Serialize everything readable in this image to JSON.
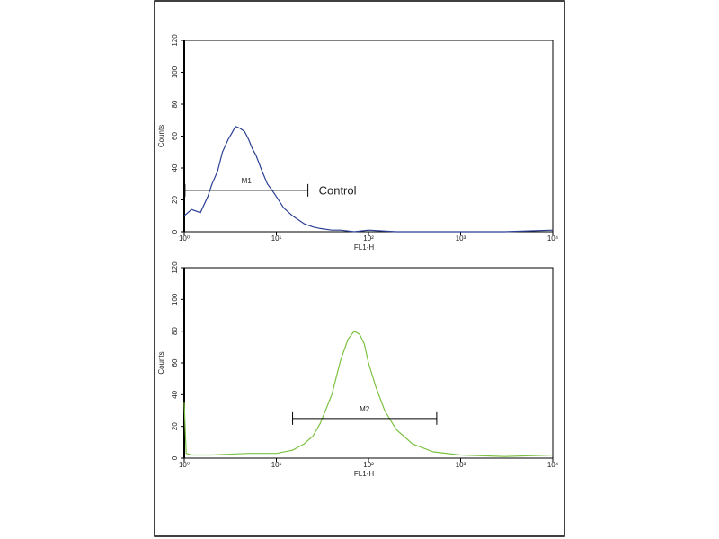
{
  "chart_data": [
    {
      "type": "line",
      "xscale": "log",
      "xlabel": "FL1-H",
      "ylabel": "Counts",
      "xlim": [
        1,
        10000
      ],
      "ylim": [
        0,
        120
      ],
      "xticks": [
        {
          "value": 1,
          "label": "10⁰"
        },
        {
          "value": 10,
          "label": "10¹"
        },
        {
          "value": 100,
          "label": "10²"
        },
        {
          "value": 1000,
          "label": "10³"
        },
        {
          "value": 10000,
          "label": "10⁴"
        }
      ],
      "yticks": [
        0,
        20,
        40,
        60,
        80,
        100,
        120
      ],
      "x": [
        1,
        1.2,
        1.5,
        1.8,
        2,
        2.3,
        2.6,
        3,
        3.3,
        3.6,
        4,
        4.5,
        5,
        5.5,
        6,
        7,
        8,
        9,
        10,
        12,
        15,
        20,
        25,
        30,
        40,
        50,
        70,
        100,
        200,
        500,
        1000,
        3000,
        10000
      ],
      "series": [
        {
          "color": "#2b3f94",
          "values": [
            10,
            14,
            12,
            22,
            30,
            38,
            50,
            58,
            62,
            66,
            65,
            63,
            58,
            52,
            48,
            38,
            30,
            26,
            22,
            15,
            10,
            5,
            3,
            2,
            1,
            1,
            0,
            1,
            0,
            0,
            0,
            0,
            1
          ]
        }
      ],
      "markers": [
        {
          "label": "M1",
          "x": [
            1.02,
            22
          ],
          "y": 26
        }
      ],
      "annotation": "Control"
    },
    {
      "type": "line",
      "xscale": "log",
      "xlabel": "FL1-H",
      "ylabel": "Counts",
      "xlim": [
        1,
        10000
      ],
      "ylim": [
        0,
        120
      ],
      "xticks": [
        {
          "value": 1,
          "label": "10⁰"
        },
        {
          "value": 10,
          "label": "10¹"
        },
        {
          "value": 100,
          "label": "10²"
        },
        {
          "value": 1000,
          "label": "10³"
        },
        {
          "value": 10000,
          "label": "10⁴"
        }
      ],
      "yticks": [
        0,
        20,
        40,
        60,
        80,
        100,
        120
      ],
      "x": [
        1,
        1.05,
        1.2,
        2,
        5,
        10,
        15,
        20,
        25,
        30,
        40,
        50,
        60,
        70,
        80,
        90,
        100,
        120,
        150,
        200,
        300,
        500,
        1000,
        3000,
        10000
      ],
      "series": [
        {
          "color": "#7cc242",
          "values": [
            35,
            3,
            2,
            2,
            3,
            3,
            5,
            9,
            14,
            22,
            40,
            62,
            75,
            80,
            78,
            72,
            60,
            45,
            30,
            18,
            9,
            4,
            2,
            1,
            2
          ]
        }
      ],
      "markers": [
        {
          "label": "M2",
          "x": [
            15,
            550
          ],
          "y": 25
        }
      ]
    }
  ]
}
